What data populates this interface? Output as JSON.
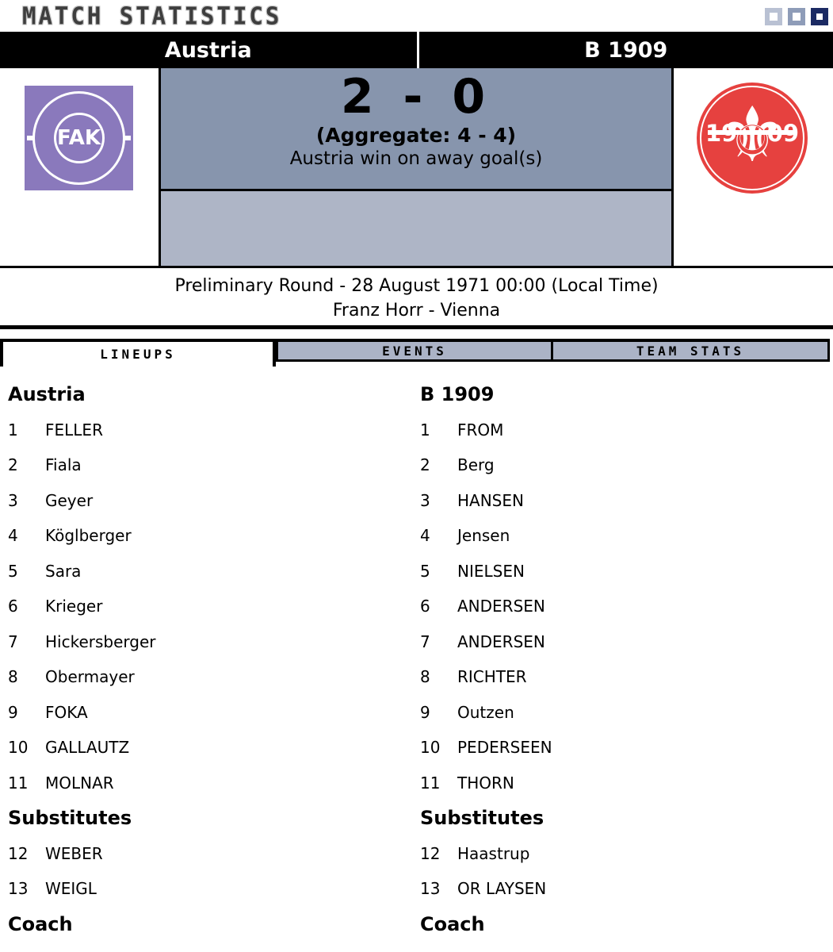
{
  "window": {
    "title": "MATCH STATISTICS"
  },
  "teams": {
    "home": {
      "name": "Austria"
    },
    "away": {
      "name": "B 1909"
    }
  },
  "scoreboard": {
    "score": "2 - 0",
    "aggregate": "(Aggregate: 4 - 4)",
    "note": "Austria win on away goal(s)"
  },
  "match_info": {
    "round_line": "Preliminary Round - 28 August 1971 00:00 (Local Time)",
    "venue_line": "Franz Horr - Vienna"
  },
  "tabs": [
    {
      "label": "LINEUPS",
      "active": true
    },
    {
      "label": "EVENTS",
      "active": false
    },
    {
      "label": "TEAM STATS",
      "active": false
    }
  ],
  "logos": {
    "home": {
      "initials": "FAK",
      "color": "#8a79bc"
    },
    "away": {
      "year_left": "19",
      "year_right": "09",
      "fleur_icon": "⚜",
      "color": "#e6413f"
    }
  },
  "lineups": {
    "home": {
      "team": "Austria",
      "players": [
        {
          "no": "1",
          "name": "FELLER"
        },
        {
          "no": "2",
          "name": "Fiala"
        },
        {
          "no": "3",
          "name": "Geyer"
        },
        {
          "no": "4",
          "name": "Köglberger"
        },
        {
          "no": "5",
          "name": "Sara"
        },
        {
          "no": "6",
          "name": "Krieger"
        },
        {
          "no": "7",
          "name": "Hickersberger"
        },
        {
          "no": "8",
          "name": "Obermayer"
        },
        {
          "no": "9",
          "name": "FOKA"
        },
        {
          "no": "10",
          "name": "GALLAUTZ"
        },
        {
          "no": "11",
          "name": "MOLNAR"
        }
      ],
      "substitutes_label": "Substitutes",
      "substitutes": [
        {
          "no": "12",
          "name": "WEBER"
        },
        {
          "no": "13",
          "name": "WEIGL"
        }
      ],
      "coach_label": "Coach"
    },
    "away": {
      "team": "B 1909",
      "players": [
        {
          "no": "1",
          "name": "FROM"
        },
        {
          "no": "2",
          "name": "Berg"
        },
        {
          "no": "3",
          "name": "HANSEN"
        },
        {
          "no": "4",
          "name": "Jensen"
        },
        {
          "no": "5",
          "name": "NIELSEN"
        },
        {
          "no": "6",
          "name": "ANDERSEN"
        },
        {
          "no": "7",
          "name": "ANDERSEN"
        },
        {
          "no": "8",
          "name": "RICHTER"
        },
        {
          "no": "9",
          "name": "Outzen"
        },
        {
          "no": "10",
          "name": "PEDERSEEN"
        },
        {
          "no": "11",
          "name": "THORN"
        }
      ],
      "substitutes_label": "Substitutes",
      "substitutes": [
        {
          "no": "12",
          "name": "Haastrup"
        },
        {
          "no": "13",
          "name": "OR LAYSEN"
        }
      ],
      "coach_label": "Coach"
    }
  },
  "colors": {
    "score_box_top": "#8795ad",
    "score_box_bottom": "#aeb5c6",
    "tab_inactive": "#abb3c6",
    "window_square_light": "#b9c1d3",
    "window_square_medium": "#8e9cb8",
    "window_square_dark": "#1b2a63"
  }
}
